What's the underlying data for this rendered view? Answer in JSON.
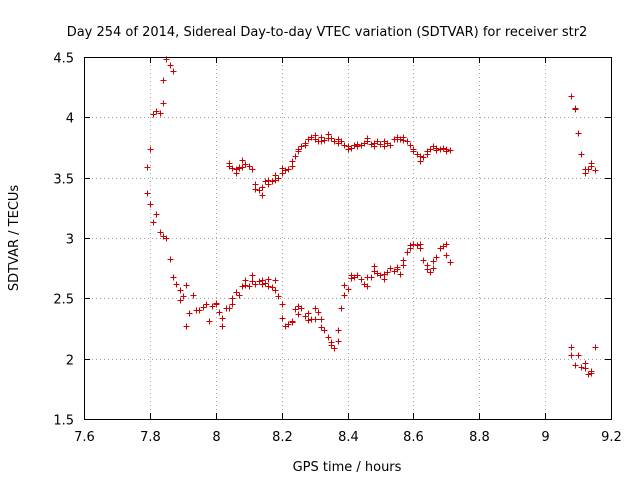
{
  "chart_data": {
    "type": "scatter",
    "title": "Day 254 of 2014, Sidereal Day-to-day VTEC variation (SDTVAR) for receiver str2",
    "xlabel": "GPS time / hours",
    "ylabel": "SDTVAR / TECUs",
    "xlim": [
      7.6,
      9.2
    ],
    "ylim": [
      1.5,
      4.5
    ],
    "xticks": [
      "7.6",
      "7.8",
      "8",
      "8.2",
      "8.4",
      "8.6",
      "8.8",
      "9",
      "9.2"
    ],
    "yticks": [
      "1.5",
      "2",
      "2.5",
      "3",
      "3.5",
      "4",
      "4.5"
    ],
    "grid": true,
    "marker": "+",
    "color": "#cc0000",
    "series": [
      {
        "name": "SDTVAR",
        "points": [
          [
            7.79,
            3.59
          ],
          [
            7.79,
            3.37
          ],
          [
            7.8,
            3.74
          ],
          [
            7.8,
            3.28
          ],
          [
            7.81,
            3.13
          ],
          [
            7.81,
            4.03
          ],
          [
            7.82,
            3.2
          ],
          [
            7.82,
            4.05
          ],
          [
            7.83,
            3.05
          ],
          [
            7.83,
            4.04
          ],
          [
            7.84,
            3.02
          ],
          [
            7.84,
            4.12
          ],
          [
            7.84,
            4.31
          ],
          [
            7.85,
            3.0
          ],
          [
            7.85,
            4.48
          ],
          [
            7.86,
            2.83
          ],
          [
            7.86,
            4.43
          ],
          [
            7.87,
            2.68
          ],
          [
            7.87,
            4.38
          ],
          [
            7.88,
            2.62
          ],
          [
            7.89,
            2.49
          ],
          [
            7.89,
            2.57
          ],
          [
            7.9,
            2.52
          ],
          [
            7.91,
            2.61
          ],
          [
            7.91,
            2.27
          ],
          [
            7.92,
            2.38
          ],
          [
            7.93,
            2.53
          ],
          [
            7.94,
            2.4
          ],
          [
            7.95,
            2.4
          ],
          [
            7.96,
            2.43
          ],
          [
            7.97,
            2.45
          ],
          [
            7.98,
            2.31
          ],
          [
            7.99,
            2.44
          ],
          [
            8.0,
            2.46
          ],
          [
            8.0,
            2.45
          ],
          [
            8.01,
            2.39
          ],
          [
            8.02,
            2.34
          ],
          [
            8.02,
            2.27
          ],
          [
            8.03,
            2.42
          ],
          [
            8.04,
            2.42
          ],
          [
            8.05,
            2.45
          ],
          [
            8.05,
            2.5
          ],
          [
            8.06,
            2.55
          ],
          [
            8.07,
            2.53
          ],
          [
            8.08,
            2.6
          ],
          [
            8.09,
            2.65
          ],
          [
            8.09,
            2.61
          ],
          [
            8.1,
            2.6
          ],
          [
            8.11,
            2.69
          ],
          [
            8.11,
            2.64
          ],
          [
            8.12,
            2.62
          ],
          [
            8.13,
            2.64
          ],
          [
            8.14,
            2.65
          ],
          [
            8.14,
            2.62
          ],
          [
            8.15,
            2.63
          ],
          [
            8.16,
            2.66
          ],
          [
            8.16,
            2.6
          ],
          [
            8.17,
            2.59
          ],
          [
            8.18,
            2.65
          ],
          [
            8.18,
            2.57
          ],
          [
            8.19,
            2.52
          ],
          [
            8.2,
            2.45
          ],
          [
            8.2,
            2.34
          ],
          [
            8.21,
            2.27
          ],
          [
            8.22,
            2.29
          ],
          [
            8.23,
            2.3
          ],
          [
            8.23,
            2.31
          ],
          [
            8.24,
            2.41
          ],
          [
            8.25,
            2.37
          ],
          [
            8.25,
            2.44
          ],
          [
            8.26,
            2.42
          ],
          [
            8.27,
            2.35
          ],
          [
            8.28,
            2.32
          ],
          [
            8.28,
            2.38
          ],
          [
            8.29,
            2.33
          ],
          [
            8.3,
            2.33
          ],
          [
            8.3,
            2.42
          ],
          [
            8.31,
            2.39
          ],
          [
            8.32,
            2.33
          ],
          [
            8.32,
            2.26
          ],
          [
            8.33,
            2.24
          ],
          [
            8.34,
            2.18
          ],
          [
            8.35,
            2.11
          ],
          [
            8.35,
            2.14
          ],
          [
            8.36,
            2.09
          ],
          [
            8.37,
            2.15
          ],
          [
            8.37,
            2.24
          ],
          [
            8.38,
            2.42
          ],
          [
            8.39,
            2.53
          ],
          [
            8.39,
            2.61
          ],
          [
            8.4,
            2.58
          ],
          [
            8.41,
            2.67
          ],
          [
            8.41,
            2.69
          ],
          [
            8.42,
            2.68
          ],
          [
            8.43,
            2.69
          ],
          [
            8.44,
            2.66
          ],
          [
            8.45,
            2.62
          ],
          [
            8.46,
            2.6
          ],
          [
            8.46,
            2.68
          ],
          [
            8.47,
            2.68
          ],
          [
            8.48,
            2.73
          ],
          [
            8.48,
            2.77
          ],
          [
            8.49,
            2.71
          ],
          [
            8.5,
            2.69
          ],
          [
            8.51,
            2.66
          ],
          [
            8.51,
            2.7
          ],
          [
            8.52,
            2.72
          ],
          [
            8.53,
            2.75
          ],
          [
            8.54,
            2.73
          ],
          [
            8.55,
            2.76
          ],
          [
            8.55,
            2.74
          ],
          [
            8.56,
            2.7
          ],
          [
            8.57,
            2.78
          ],
          [
            8.57,
            2.82
          ],
          [
            8.58,
            2.88
          ],
          [
            8.59,
            2.92
          ],
          [
            8.59,
            2.94
          ],
          [
            8.6,
            2.95
          ],
          [
            8.61,
            2.94
          ],
          [
            8.62,
            2.95
          ],
          [
            8.62,
            2.92
          ],
          [
            8.63,
            2.82
          ],
          [
            8.64,
            2.78
          ],
          [
            8.64,
            2.74
          ],
          [
            8.65,
            2.72
          ],
          [
            8.66,
            2.75
          ],
          [
            8.66,
            2.81
          ],
          [
            8.67,
            2.84
          ],
          [
            8.68,
            2.92
          ],
          [
            8.69,
            2.93
          ],
          [
            8.7,
            2.86
          ],
          [
            8.7,
            2.95
          ],
          [
            8.71,
            2.8
          ],
          [
            8.04,
            3.6
          ],
          [
            8.04,
            3.62
          ],
          [
            8.05,
            3.58
          ],
          [
            8.06,
            3.54
          ],
          [
            8.06,
            3.57
          ],
          [
            8.07,
            3.59
          ],
          [
            8.07,
            3.58
          ],
          [
            8.08,
            3.59
          ],
          [
            8.08,
            3.65
          ],
          [
            8.09,
            3.61
          ],
          [
            8.1,
            3.6
          ],
          [
            8.11,
            3.57
          ],
          [
            8.12,
            3.45
          ],
          [
            8.12,
            3.41
          ],
          [
            8.13,
            3.4
          ],
          [
            8.14,
            3.36
          ],
          [
            8.14,
            3.42
          ],
          [
            8.15,
            3.47
          ],
          [
            8.16,
            3.48
          ],
          [
            8.16,
            3.45
          ],
          [
            8.17,
            3.47
          ],
          [
            8.18,
            3.48
          ],
          [
            8.18,
            3.52
          ],
          [
            8.19,
            3.5
          ],
          [
            8.2,
            3.54
          ],
          [
            8.2,
            3.58
          ],
          [
            8.21,
            3.56
          ],
          [
            8.22,
            3.57
          ],
          [
            8.23,
            3.6
          ],
          [
            8.23,
            3.64
          ],
          [
            8.24,
            3.68
          ],
          [
            8.25,
            3.72
          ],
          [
            8.25,
            3.74
          ],
          [
            8.26,
            3.76
          ],
          [
            8.27,
            3.77
          ],
          [
            8.27,
            3.79
          ],
          [
            8.28,
            3.82
          ],
          [
            8.29,
            3.84
          ],
          [
            8.3,
            3.85
          ],
          [
            8.3,
            3.82
          ],
          [
            8.31,
            3.8
          ],
          [
            8.32,
            3.84
          ],
          [
            8.32,
            3.8
          ],
          [
            8.33,
            3.81
          ],
          [
            8.34,
            3.83
          ],
          [
            8.34,
            3.86
          ],
          [
            8.35,
            3.83
          ],
          [
            8.36,
            3.8
          ],
          [
            8.37,
            3.82
          ],
          [
            8.37,
            3.79
          ],
          [
            8.38,
            3.8
          ],
          [
            8.39,
            3.77
          ],
          [
            8.4,
            3.74
          ],
          [
            8.4,
            3.76
          ],
          [
            8.41,
            3.75
          ],
          [
            8.42,
            3.77
          ],
          [
            8.43,
            3.78
          ],
          [
            8.43,
            3.76
          ],
          [
            8.44,
            3.77
          ],
          [
            8.45,
            3.79
          ],
          [
            8.46,
            3.8
          ],
          [
            8.46,
            3.83
          ],
          [
            8.47,
            3.78
          ],
          [
            8.48,
            3.76
          ],
          [
            8.48,
            3.79
          ],
          [
            8.49,
            3.8
          ],
          [
            8.5,
            3.78
          ],
          [
            8.51,
            3.76
          ],
          [
            8.51,
            3.8
          ],
          [
            8.52,
            3.79
          ],
          [
            8.53,
            3.77
          ],
          [
            8.54,
            3.82
          ],
          [
            8.55,
            3.84
          ],
          [
            8.55,
            3.82
          ],
          [
            8.56,
            3.82
          ],
          [
            8.57,
            3.84
          ],
          [
            8.57,
            3.81
          ],
          [
            8.58,
            3.8
          ],
          [
            8.59,
            3.77
          ],
          [
            8.6,
            3.74
          ],
          [
            8.6,
            3.72
          ],
          [
            8.61,
            3.7
          ],
          [
            8.62,
            3.68
          ],
          [
            8.62,
            3.64
          ],
          [
            8.63,
            3.67
          ],
          [
            8.64,
            3.72
          ],
          [
            8.64,
            3.7
          ],
          [
            8.65,
            3.74
          ],
          [
            8.66,
            3.76
          ],
          [
            8.67,
            3.75
          ],
          [
            8.67,
            3.73
          ],
          [
            8.68,
            3.74
          ],
          [
            8.69,
            3.75
          ],
          [
            8.7,
            3.72
          ],
          [
            8.7,
            3.74
          ],
          [
            8.71,
            3.73
          ],
          [
            9.08,
            4.18
          ],
          [
            9.09,
            4.07
          ],
          [
            9.09,
            4.08
          ],
          [
            9.1,
            3.87
          ],
          [
            9.11,
            3.7
          ],
          [
            9.12,
            3.57
          ],
          [
            9.12,
            3.54
          ],
          [
            9.13,
            3.57
          ],
          [
            9.14,
            3.6
          ],
          [
            9.14,
            3.62
          ],
          [
            9.15,
            3.56
          ],
          [
            9.08,
            2.03
          ],
          [
            9.08,
            2.1
          ],
          [
            9.09,
            1.95
          ],
          [
            9.1,
            2.03
          ],
          [
            9.11,
            1.93
          ],
          [
            9.12,
            1.96
          ],
          [
            9.12,
            1.92
          ],
          [
            9.13,
            1.87
          ],
          [
            9.14,
            1.9
          ],
          [
            9.14,
            1.88
          ],
          [
            9.15,
            2.1
          ]
        ]
      }
    ]
  }
}
